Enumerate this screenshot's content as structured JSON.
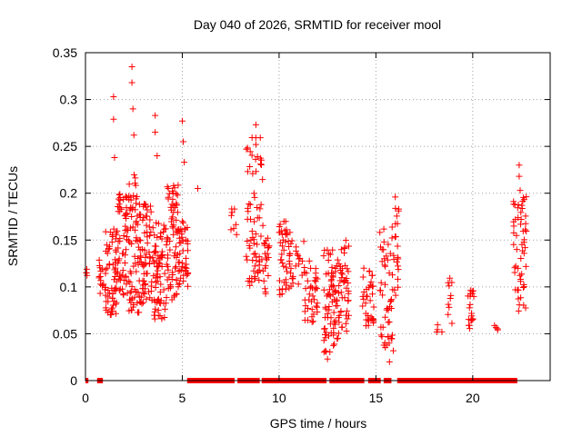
{
  "chart_data": {
    "type": "scatter",
    "title": "Day 040 of 2026, SRMTID for receiver mool",
    "xlabel": "GPS time / hours",
    "ylabel": "SRMTID / TECUs",
    "xlim": [
      0,
      24
    ],
    "ylim": [
      0,
      0.35
    ],
    "x_ticks": [
      0,
      5,
      10,
      15,
      20
    ],
    "y_ticks": [
      0,
      0.05,
      0.1,
      0.15,
      0.2,
      0.25,
      0.3,
      0.35
    ],
    "x_tick_labels": [
      "0",
      "5",
      "10",
      "15",
      "20"
    ],
    "y_tick_labels": [
      "0",
      "0.05",
      "0.1",
      "0.15",
      "0.2",
      "0.25",
      "0.3",
      "0.35"
    ],
    "grid": true,
    "marker": "+",
    "series_color": "#ff0000",
    "clusters": [
      {
        "x": [
          0.0,
          0.1
        ],
        "y": [
          0.11,
          0.125
        ],
        "n": 4
      },
      {
        "x": [
          0.7,
          1.0
        ],
        "y": [
          0.09,
          0.13
        ],
        "n": 14
      },
      {
        "x": [
          1.0,
          1.6
        ],
        "y": [
          0.07,
          0.165
        ],
        "n": 60
      },
      {
        "x": [
          1.6,
          2.2
        ],
        "y": [
          0.09,
          0.2
        ],
        "n": 60
      },
      {
        "x": [
          2.2,
          2.8
        ],
        "y": [
          0.07,
          0.22
        ],
        "n": 70
      },
      {
        "x": [
          2.8,
          3.5
        ],
        "y": [
          0.08,
          0.19
        ],
        "n": 70
      },
      {
        "x": [
          3.5,
          4.2
        ],
        "y": [
          0.065,
          0.17
        ],
        "n": 70
      },
      {
        "x": [
          4.2,
          4.8
        ],
        "y": [
          0.08,
          0.21
        ],
        "n": 70
      },
      {
        "x": [
          4.8,
          5.3
        ],
        "y": [
          0.1,
          0.17
        ],
        "n": 40
      },
      {
        "x": [
          7.5,
          7.9
        ],
        "y": [
          0.14,
          0.2
        ],
        "n": 8
      },
      {
        "x": [
          8.3,
          9.2
        ],
        "y": [
          0.1,
          0.26
        ],
        "n": 70
      },
      {
        "x": [
          9.2,
          9.5
        ],
        "y": [
          0.09,
          0.16
        ],
        "n": 20
      },
      {
        "x": [
          10.0,
          10.6
        ],
        "y": [
          0.09,
          0.17
        ],
        "n": 45
      },
      {
        "x": [
          10.6,
          11.3
        ],
        "y": [
          0.1,
          0.15
        ],
        "n": 20
      },
      {
        "x": [
          11.3,
          12.0
        ],
        "y": [
          0.06,
          0.13
        ],
        "n": 40
      },
      {
        "x": [
          12.3,
          13.1
        ],
        "y": [
          0.03,
          0.14
        ],
        "n": 80
      },
      {
        "x": [
          13.1,
          13.6
        ],
        "y": [
          0.05,
          0.15
        ],
        "n": 40
      },
      {
        "x": [
          14.3,
          14.9
        ],
        "y": [
          0.05,
          0.12
        ],
        "n": 35
      },
      {
        "x": [
          15.2,
          15.9
        ],
        "y": [
          0.03,
          0.165
        ],
        "n": 50
      },
      {
        "x": [
          15.9,
          16.2
        ],
        "y": [
          0.08,
          0.19
        ],
        "n": 20
      },
      {
        "x": [
          18.1,
          18.5
        ],
        "y": [
          0.05,
          0.06
        ],
        "n": 4
      },
      {
        "x": [
          18.7,
          19.0
        ],
        "y": [
          0.06,
          0.12
        ],
        "n": 10
      },
      {
        "x": [
          19.7,
          20.1
        ],
        "y": [
          0.055,
          0.1
        ],
        "n": 20
      },
      {
        "x": [
          21.1,
          21.3
        ],
        "y": [
          0.05,
          0.06
        ],
        "n": 4
      },
      {
        "x": [
          22.1,
          22.8
        ],
        "y": [
          0.07,
          0.2
        ],
        "n": 55
      }
    ],
    "outliers": [
      {
        "x": 2.4,
        "y": 0.335
      },
      {
        "x": 2.4,
        "y": 0.318
      },
      {
        "x": 2.45,
        "y": 0.29
      },
      {
        "x": 2.5,
        "y": 0.262
      },
      {
        "x": 1.45,
        "y": 0.303
      },
      {
        "x": 1.45,
        "y": 0.279
      },
      {
        "x": 1.5,
        "y": 0.238
      },
      {
        "x": 3.6,
        "y": 0.283
      },
      {
        "x": 3.6,
        "y": 0.265
      },
      {
        "x": 3.7,
        "y": 0.24
      },
      {
        "x": 5.0,
        "y": 0.277
      },
      {
        "x": 5.05,
        "y": 0.255
      },
      {
        "x": 5.1,
        "y": 0.233
      },
      {
        "x": 8.8,
        "y": 0.273
      },
      {
        "x": 8.8,
        "y": 0.252
      },
      {
        "x": 5.8,
        "y": 0.205
      },
      {
        "x": 16.0,
        "y": 0.196
      },
      {
        "x": 15.7,
        "y": 0.02
      },
      {
        "x": 12.5,
        "y": 0.023
      },
      {
        "x": 22.4,
        "y": 0.23
      },
      {
        "x": 22.4,
        "y": 0.218
      },
      {
        "x": 22.45,
        "y": 0.203
      }
    ],
    "zero_segments": [
      [
        0.0,
        0.15
      ],
      [
        0.6,
        0.9
      ],
      [
        5.25,
        7.7
      ],
      [
        7.85,
        9.0
      ],
      [
        9.1,
        12.45
      ],
      [
        12.6,
        14.4
      ],
      [
        14.6,
        15.25
      ],
      [
        15.4,
        15.8
      ],
      [
        16.1,
        22.3
      ]
    ]
  }
}
